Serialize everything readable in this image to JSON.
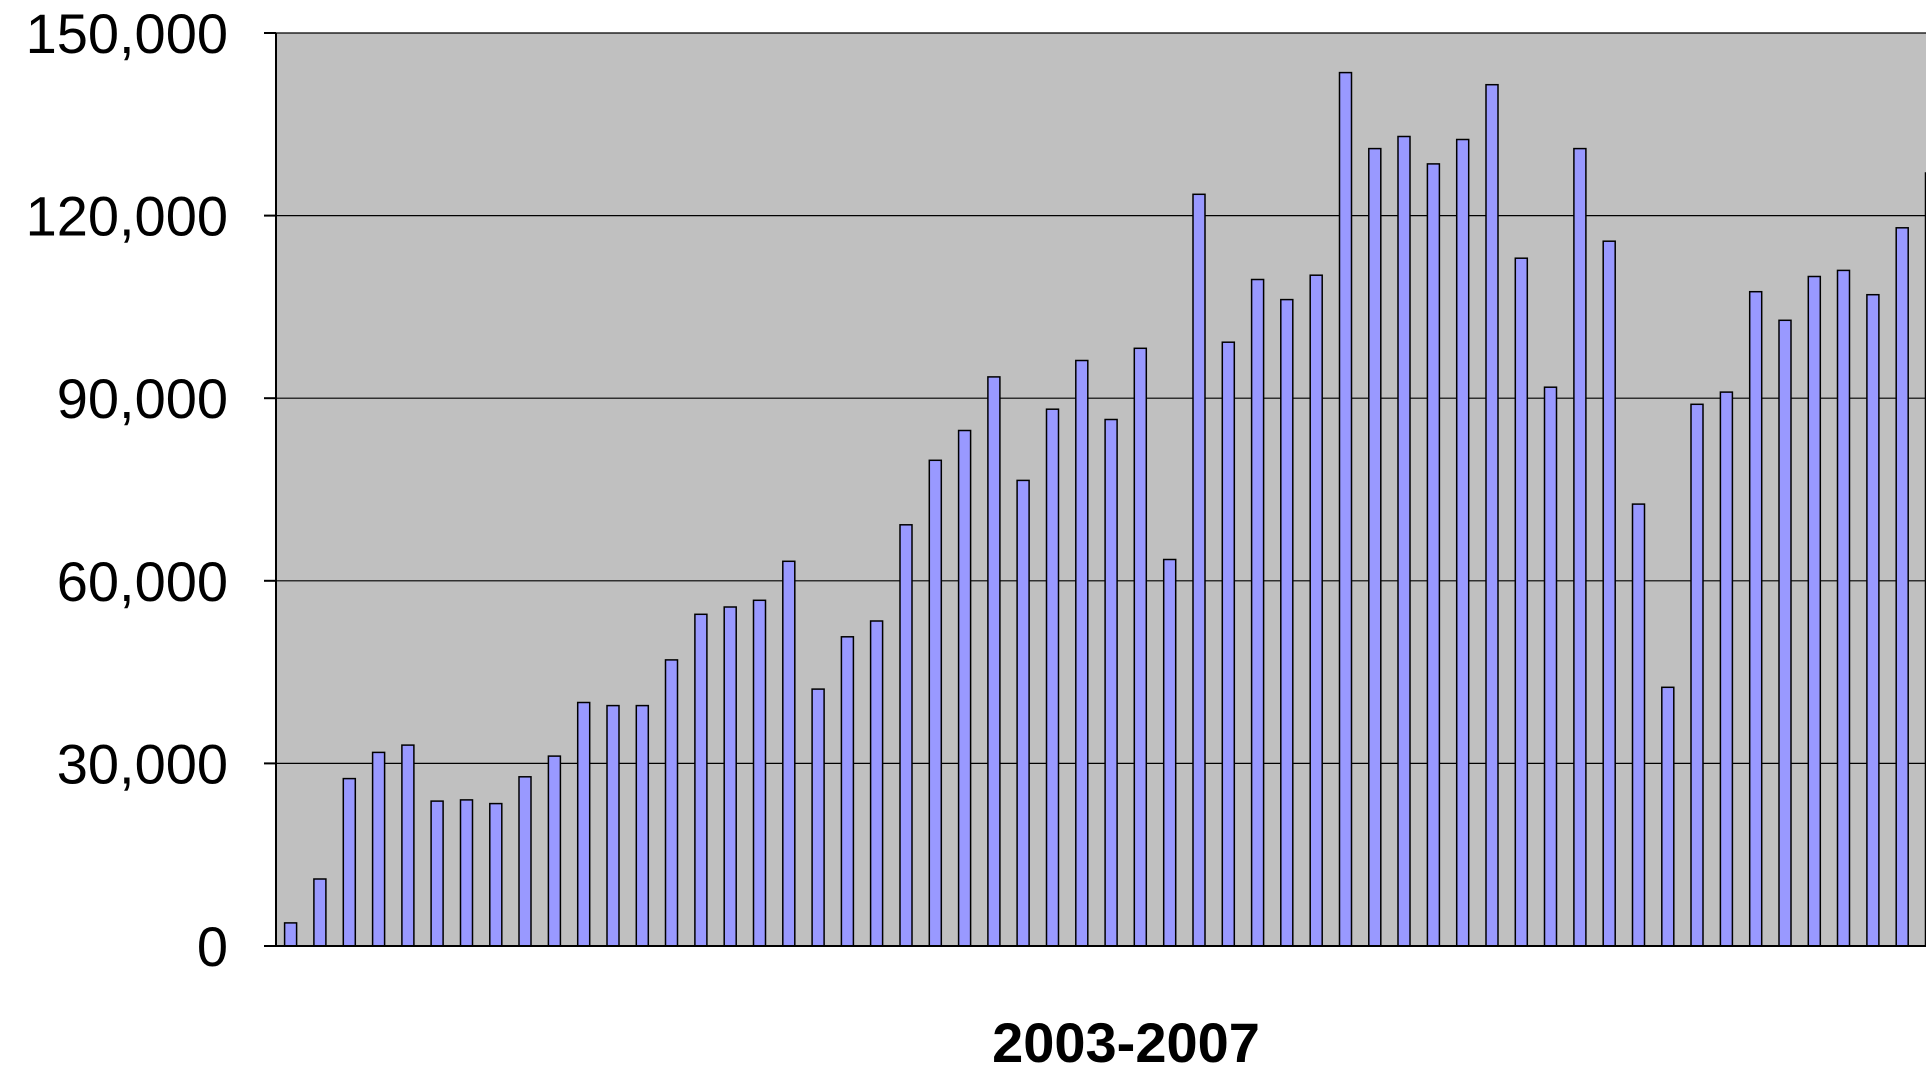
{
  "chart_data": {
    "type": "bar",
    "title": "",
    "xlabel": "2003-2007",
    "ylabel": "",
    "ylim": [
      0,
      150000
    ],
    "yticks": [
      0,
      30000,
      60000,
      90000,
      120000,
      150000
    ],
    "ytick_labels": [
      "0",
      "30,000",
      "60,000",
      "90,000",
      "120,000",
      "150,000"
    ],
    "grid": true,
    "legend": "none",
    "plot_background": "#c0c0c0",
    "bar_color": "#9999ff",
    "bar_edge_color": "#000000",
    "values": [
      3800,
      11000,
      27500,
      31800,
      33000,
      23800,
      24000,
      23400,
      27800,
      31200,
      40000,
      39500,
      39500,
      47000,
      54500,
      55700,
      56800,
      63200,
      42200,
      50800,
      53400,
      69200,
      79800,
      84700,
      93500,
      76500,
      88200,
      96200,
      86500,
      98200,
      63500,
      123500,
      99200,
      109500,
      106200,
      110200,
      143500,
      131000,
      133000,
      128500,
      132500,
      141500,
      113000,
      91800,
      131000,
      115800,
      72600,
      42500,
      89000,
      91000,
      107500,
      102800,
      110000,
      111000,
      107000,
      118000,
      127000
    ]
  }
}
